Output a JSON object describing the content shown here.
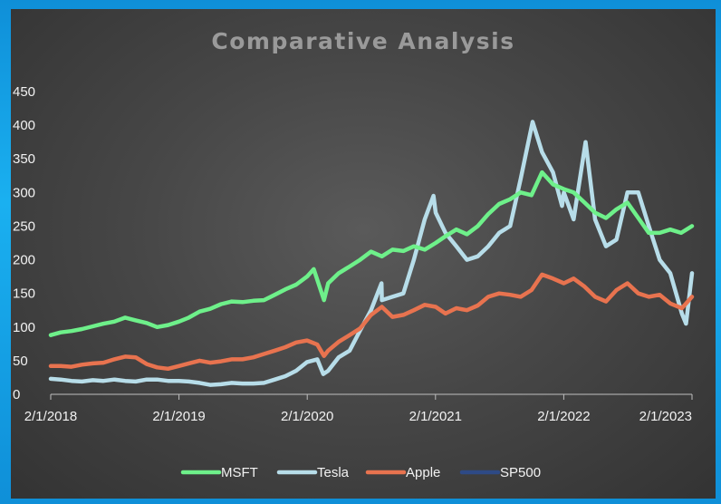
{
  "chart_data": {
    "type": "line",
    "title": "Comparative Analysis",
    "xlabel": "",
    "ylabel": "",
    "ylim": [
      0,
      450
    ],
    "yticks": [
      "0",
      "50",
      "100",
      "150",
      "200",
      "250",
      "300",
      "350",
      "400",
      "450"
    ],
    "xticks": [
      "2/1/2018",
      "2/1/2019",
      "2/1/2020",
      "2/1/2021",
      "2/1/2022",
      "2/1/2023"
    ],
    "xrange_dates": [
      "2018-02-01",
      "2023-02-01"
    ],
    "grid": false,
    "legend_position": "bottom",
    "series": [
      {
        "name": "MSFT",
        "color": "#6ef08a",
        "x": [
          "2018-02-01",
          "2018-03-01",
          "2018-04-01",
          "2018-05-01",
          "2018-06-01",
          "2018-07-01",
          "2018-08-01",
          "2018-09-01",
          "2018-10-01",
          "2018-11-01",
          "2018-12-01",
          "2019-01-01",
          "2019-02-01",
          "2019-03-01",
          "2019-04-01",
          "2019-05-01",
          "2019-06-01",
          "2019-07-01",
          "2019-08-01",
          "2019-09-01",
          "2019-10-01",
          "2019-11-01",
          "2019-12-01",
          "2020-01-01",
          "2020-02-01",
          "2020-02-20",
          "2020-03-20",
          "2020-04-01",
          "2020-05-01",
          "2020-06-01",
          "2020-07-01",
          "2020-08-01",
          "2020-09-01",
          "2020-10-01",
          "2020-11-01",
          "2020-12-01",
          "2021-01-01",
          "2021-02-01",
          "2021-03-01",
          "2021-04-01",
          "2021-05-01",
          "2021-06-01",
          "2021-07-01",
          "2021-08-01",
          "2021-09-01",
          "2021-10-01",
          "2021-11-01",
          "2021-12-01",
          "2022-01-01",
          "2022-02-01",
          "2022-03-01",
          "2022-04-01",
          "2022-05-01",
          "2022-06-01",
          "2022-07-01",
          "2022-08-01",
          "2022-09-01",
          "2022-10-01",
          "2022-11-01",
          "2022-12-01",
          "2023-01-01",
          "2023-02-01"
        ],
        "y": [
          88,
          92,
          94,
          97,
          101,
          105,
          108,
          114,
          110,
          106,
          100,
          103,
          108,
          114,
          123,
          127,
          134,
          138,
          137,
          139,
          140,
          148,
          156,
          163,
          175,
          186,
          140,
          165,
          180,
          190,
          200,
          212,
          205,
          215,
          213,
          220,
          215,
          225,
          235,
          245,
          238,
          250,
          268,
          283,
          290,
          300,
          296,
          330,
          312,
          305,
          300,
          285,
          270,
          262,
          275,
          285,
          262,
          240,
          240,
          245,
          240,
          250
        ]
      },
      {
        "name": "Tesla",
        "color": "#b7dde9",
        "x": [
          "2018-02-01",
          "2018-03-01",
          "2018-04-01",
          "2018-05-01",
          "2018-06-01",
          "2018-07-01",
          "2018-08-01",
          "2018-09-01",
          "2018-10-01",
          "2018-11-01",
          "2018-12-01",
          "2019-01-01",
          "2019-02-01",
          "2019-03-01",
          "2019-04-01",
          "2019-05-01",
          "2019-06-01",
          "2019-07-01",
          "2019-08-01",
          "2019-09-01",
          "2019-10-01",
          "2019-11-01",
          "2019-12-01",
          "2020-01-01",
          "2020-02-01",
          "2020-03-01",
          "2020-03-18",
          "2020-04-01",
          "2020-05-01",
          "2020-06-01",
          "2020-07-01",
          "2020-08-01",
          "2020-08-31",
          "2020-09-01",
          "2020-10-01",
          "2020-11-01",
          "2020-12-01",
          "2021-01-01",
          "2021-01-26",
          "2021-02-01",
          "2021-03-01",
          "2021-04-01",
          "2021-05-01",
          "2021-06-01",
          "2021-07-01",
          "2021-08-01",
          "2021-09-01",
          "2021-10-01",
          "2021-11-04",
          "2021-12-01",
          "2022-01-01",
          "2022-01-27",
          "2022-02-01",
          "2022-03-01",
          "2022-04-04",
          "2022-05-01",
          "2022-06-01",
          "2022-07-01",
          "2022-08-01",
          "2022-09-01",
          "2022-10-01",
          "2022-11-01",
          "2022-12-01",
          "2023-01-03",
          "2023-01-15",
          "2023-02-01"
        ],
        "y": [
          23,
          22,
          20,
          19,
          21,
          20,
          22,
          20,
          19,
          22,
          22,
          20,
          20,
          19,
          17,
          14,
          15,
          17,
          16,
          16,
          17,
          22,
          27,
          35,
          48,
          52,
          30,
          35,
          55,
          65,
          95,
          125,
          165,
          140,
          145,
          150,
          200,
          260,
          295,
          270,
          240,
          220,
          200,
          205,
          220,
          240,
          250,
          320,
          405,
          360,
          330,
          280,
          300,
          260,
          375,
          260,
          220,
          230,
          300,
          300,
          250,
          200,
          180,
          120,
          105,
          180
        ]
      },
      {
        "name": "Apple",
        "color": "#e8734f",
        "x": [
          "2018-02-01",
          "2018-03-01",
          "2018-04-01",
          "2018-05-01",
          "2018-06-01",
          "2018-07-01",
          "2018-08-01",
          "2018-09-01",
          "2018-10-01",
          "2018-11-01",
          "2018-12-01",
          "2019-01-01",
          "2019-02-01",
          "2019-03-01",
          "2019-04-01",
          "2019-05-01",
          "2019-06-01",
          "2019-07-01",
          "2019-08-01",
          "2019-09-01",
          "2019-10-01",
          "2019-11-01",
          "2019-12-01",
          "2020-01-01",
          "2020-02-01",
          "2020-03-01",
          "2020-03-20",
          "2020-04-01",
          "2020-05-01",
          "2020-06-01",
          "2020-07-01",
          "2020-08-01",
          "2020-09-01",
          "2020-10-01",
          "2020-11-01",
          "2020-12-01",
          "2021-01-01",
          "2021-02-01",
          "2021-03-01",
          "2021-04-01",
          "2021-05-01",
          "2021-06-01",
          "2021-07-01",
          "2021-08-01",
          "2021-09-01",
          "2021-10-01",
          "2021-11-01",
          "2021-12-01",
          "2022-01-01",
          "2022-02-01",
          "2022-03-01",
          "2022-04-01",
          "2022-05-01",
          "2022-06-01",
          "2022-07-01",
          "2022-08-01",
          "2022-09-01",
          "2022-10-01",
          "2022-11-01",
          "2022-12-01",
          "2023-01-03",
          "2023-02-01"
        ],
        "y": [
          42,
          42,
          41,
          44,
          46,
          47,
          52,
          56,
          55,
          45,
          40,
          38,
          42,
          46,
          50,
          47,
          49,
          52,
          52,
          55,
          60,
          65,
          70,
          77,
          80,
          74,
          57,
          65,
          78,
          88,
          98,
          118,
          130,
          115,
          118,
          125,
          133,
          130,
          120,
          128,
          125,
          132,
          145,
          150,
          148,
          145,
          155,
          178,
          172,
          165,
          172,
          160,
          145,
          138,
          155,
          165,
          150,
          145,
          148,
          135,
          128,
          145
        ]
      },
      {
        "name": "SP500",
        "color": "#2e4a86",
        "x": [],
        "y": []
      }
    ]
  }
}
